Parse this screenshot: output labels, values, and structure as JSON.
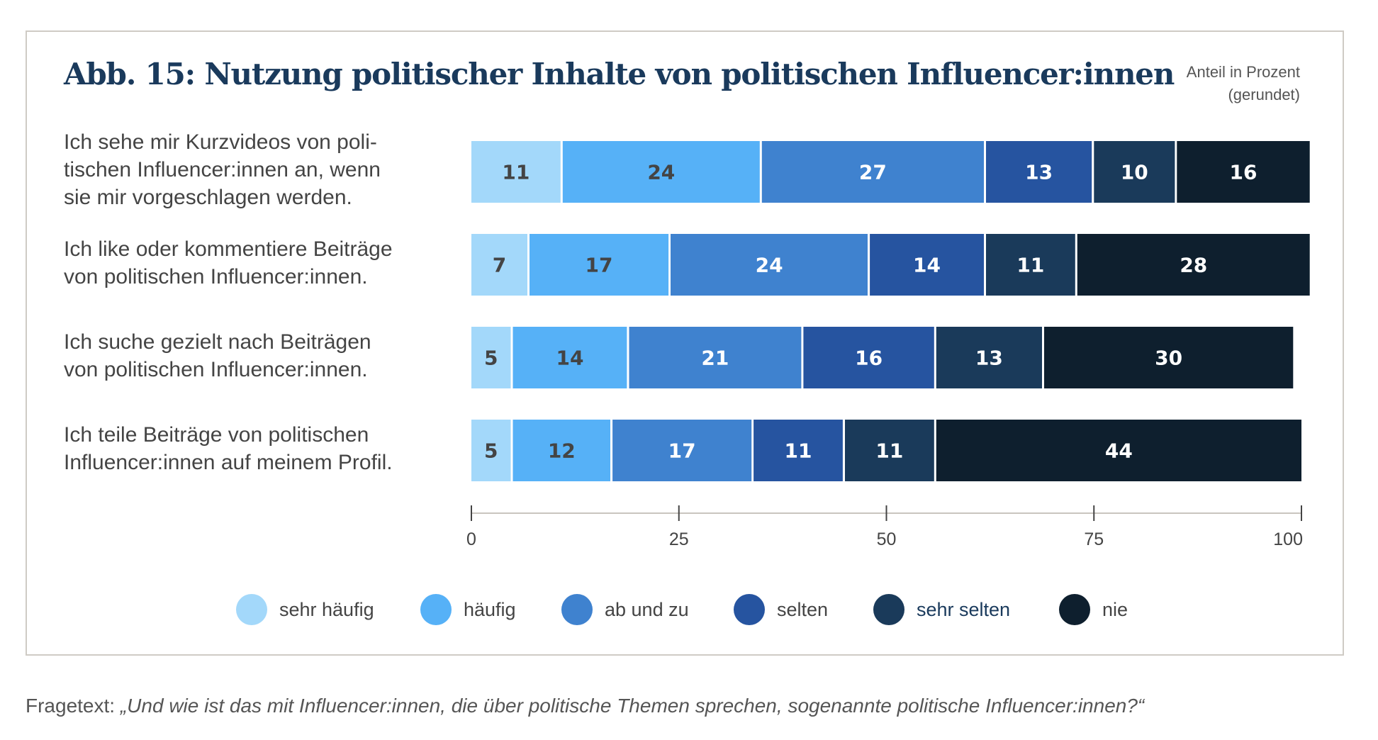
{
  "figure": {
    "title": "Abb. 15: Nutzung politischer Inhalte von politischen Influencer:innen",
    "unit_note_line1": "Anteil in Prozent",
    "unit_note_line2": "(gerundet)"
  },
  "footnote": {
    "prefix": "Fragetext: ",
    "question": "„Und wie ist das mit Influencer:innen, die über politische Themen sprechen, sogenannte politische Influencer:innen?“"
  },
  "chart_data": {
    "type": "bar",
    "orientation": "horizontal",
    "stacked": true,
    "title": "Abb. 15: Nutzung politischer Inhalte von politischen Influencer:innen",
    "xlabel": "",
    "ylabel": "",
    "xlim": [
      0,
      100
    ],
    "xticks": [
      0,
      25,
      50,
      75,
      100
    ],
    "xtick_labels": [
      "0",
      "25",
      "50",
      "75",
      "100"
    ],
    "grid": false,
    "legend_position": "bottom",
    "categories": [
      "Ich sehe mir Kurzvideos von poli-\ntischen Influencer:innen an, wenn\nsie mir vorgeschlagen werden.",
      "Ich like oder kommentiere Beiträge\nvon politischen Influencer:innen.",
      "Ich suche gezielt nach Beiträgen\nvon politischen Influencer:innen.",
      "Ich teile Beiträge von politischen\nInfluencer:innen auf meinem Profil."
    ],
    "series": [
      {
        "name": "sehr häufig",
        "color": "#a3d8fa",
        "label_color": "#444444",
        "values": [
          11,
          7,
          5,
          5
        ]
      },
      {
        "name": "häufig",
        "color": "#56b1f7",
        "label_color": "#444444",
        "values": [
          24,
          17,
          14,
          12
        ]
      },
      {
        "name": "ab und zu",
        "color": "#3f82cf",
        "label_color": "#ffffff",
        "values": [
          27,
          24,
          21,
          17
        ]
      },
      {
        "name": "selten",
        "color": "#2654a0",
        "label_color": "#ffffff",
        "values": [
          13,
          14,
          16,
          11
        ]
      },
      {
        "name": "sehr selten",
        "color": "#1a3a5a",
        "label_color": "#ffffff",
        "values": [
          10,
          11,
          13,
          11
        ]
      },
      {
        "name": "nie",
        "color": "#0e1f2e",
        "label_color": "#ffffff",
        "values": [
          16,
          28,
          30,
          44
        ]
      }
    ]
  }
}
